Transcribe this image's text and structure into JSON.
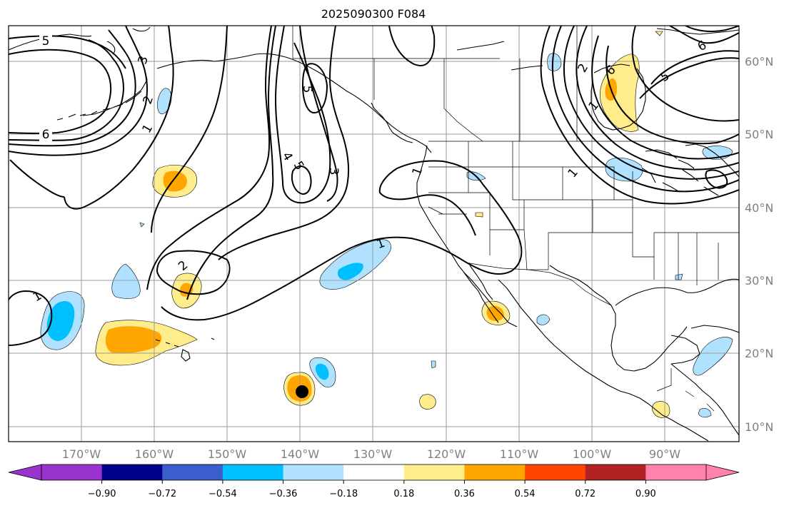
{
  "title": "2025090300 F084",
  "lon_ticks": [
    "170°W",
    "160°W",
    "150°W",
    "140°W",
    "130°W",
    "120°W",
    "110°W",
    "100°W",
    "90°W"
  ],
  "lat_ticks": [
    "10°N",
    "20°N",
    "30°N",
    "40°N",
    "50°N",
    "60°N"
  ],
  "colorbar": {
    "colors": [
      "#9a32cd",
      "#00008b",
      "#3a5fcd",
      "#00bfff",
      "#b0e2ff",
      "#ffffff",
      "#ffec8b",
      "#ffa500",
      "#ff4500",
      "#b22222",
      "#ff82ab"
    ],
    "under_color": "#9a32cd",
    "over_color": "#ff82ab",
    "tick_labels": [
      "−0.90",
      "−0.72",
      "−0.54",
      "−0.36",
      "−0.18",
      "0.18",
      "0.36",
      "0.54",
      "0.72",
      "0.90"
    ]
  },
  "contour_labels": [
    "5",
    "3",
    "2",
    "1",
    "6",
    "5",
    "4",
    "5",
    "3",
    "1",
    "2",
    "1",
    "1",
    "2",
    "6",
    "5",
    "6",
    "1",
    "1"
  ],
  "storm_marker_color": "#000000"
}
